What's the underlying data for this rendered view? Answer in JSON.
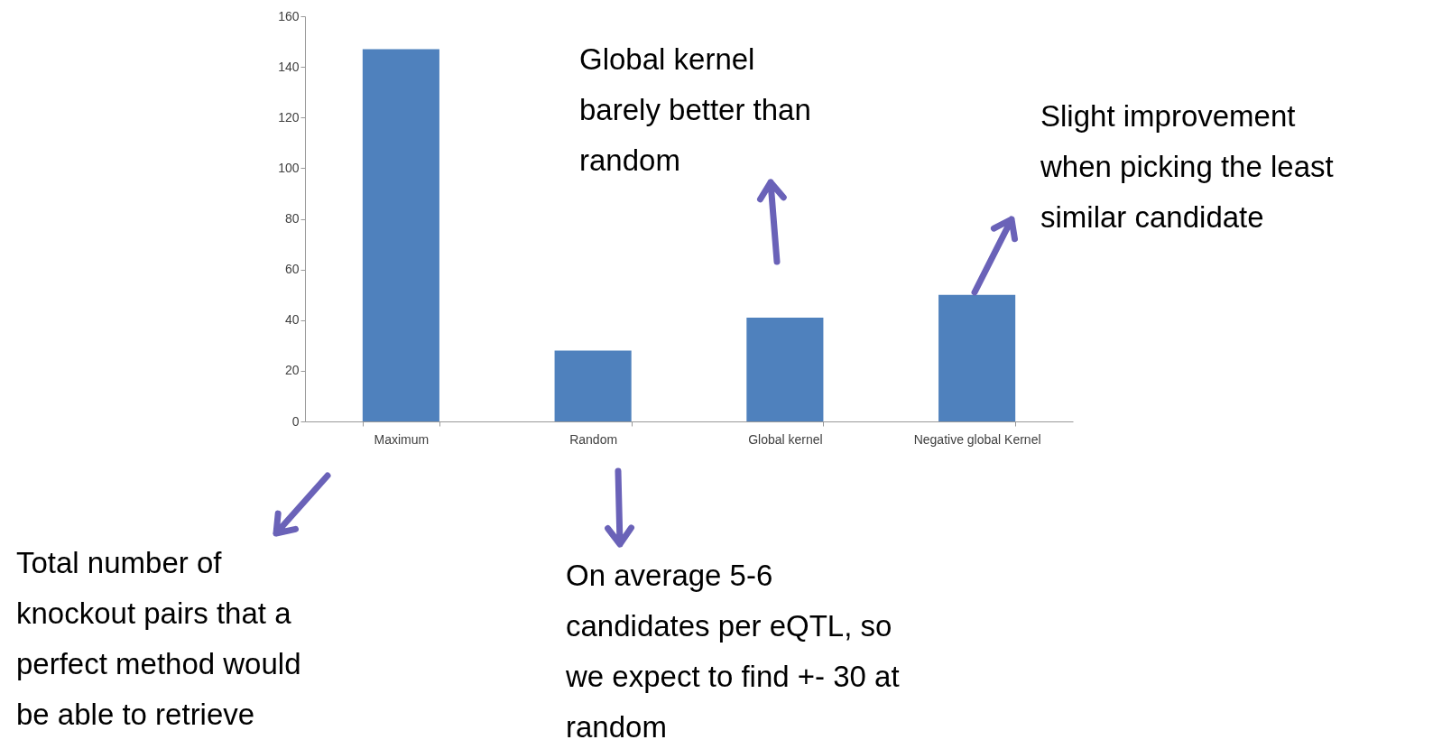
{
  "chart_data": {
    "type": "bar",
    "categories": [
      "Maximum",
      "Random",
      "Global kernel",
      "Negative global Kernel"
    ],
    "values": [
      147,
      28,
      41,
      50
    ],
    "color": "#4f81bd",
    "ylim": [
      0,
      160
    ],
    "yticks": [
      0,
      20,
      40,
      60,
      80,
      100,
      120,
      140,
      160
    ],
    "grid": false,
    "annotations": [
      "Total number of knockout pairs that a perfect method would be able to retrieve",
      "On average 5-6 candidates per eQTL, so we expect to find +- 30 at random",
      "Global kernel barely better than random",
      "Slight improvement when picking the least similar candidate"
    ]
  }
}
